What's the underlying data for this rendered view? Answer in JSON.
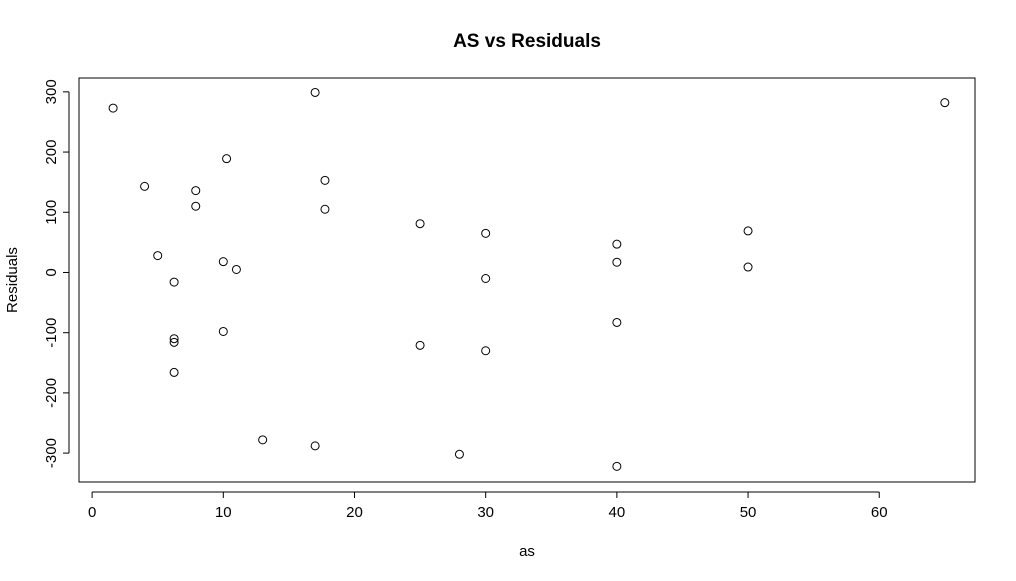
{
  "chart_data": {
    "type": "scatter",
    "title": "AS vs Residuals",
    "xlabel": "as",
    "ylabel": "Residuals",
    "xlim": [
      -1,
      67.3
    ],
    "ylim": [
      -348,
      323
    ],
    "xticks": [
      0,
      10,
      20,
      30,
      40,
      50,
      60
    ],
    "yticks": [
      -300,
      -200,
      -100,
      0,
      100,
      200,
      300
    ],
    "grid": false,
    "points": [
      {
        "x": 1.6,
        "y": 273
      },
      {
        "x": 4,
        "y": 143
      },
      {
        "x": 5,
        "y": 28
      },
      {
        "x": 6.25,
        "y": -16
      },
      {
        "x": 6.25,
        "y": -110
      },
      {
        "x": 6.25,
        "y": -116
      },
      {
        "x": 6.25,
        "y": -166
      },
      {
        "x": 7.9,
        "y": 136
      },
      {
        "x": 7.9,
        "y": 110
      },
      {
        "x": 10,
        "y": 18
      },
      {
        "x": 10,
        "y": -98
      },
      {
        "x": 10.25,
        "y": 189
      },
      {
        "x": 11,
        "y": 5
      },
      {
        "x": 13,
        "y": -278
      },
      {
        "x": 17,
        "y": 299
      },
      {
        "x": 17,
        "y": -288
      },
      {
        "x": 17.75,
        "y": 153
      },
      {
        "x": 17.75,
        "y": 105
      },
      {
        "x": 25,
        "y": 81
      },
      {
        "x": 25,
        "y": -121
      },
      {
        "x": 28,
        "y": -302
      },
      {
        "x": 30,
        "y": 65
      },
      {
        "x": 30,
        "y": -10
      },
      {
        "x": 30,
        "y": -130
      },
      {
        "x": 40,
        "y": 47
      },
      {
        "x": 40,
        "y": 17
      },
      {
        "x": 40,
        "y": -83
      },
      {
        "x": 40,
        "y": -322
      },
      {
        "x": 50,
        "y": 69
      },
      {
        "x": 50,
        "y": 9
      },
      {
        "x": 65,
        "y": 282
      }
    ]
  }
}
